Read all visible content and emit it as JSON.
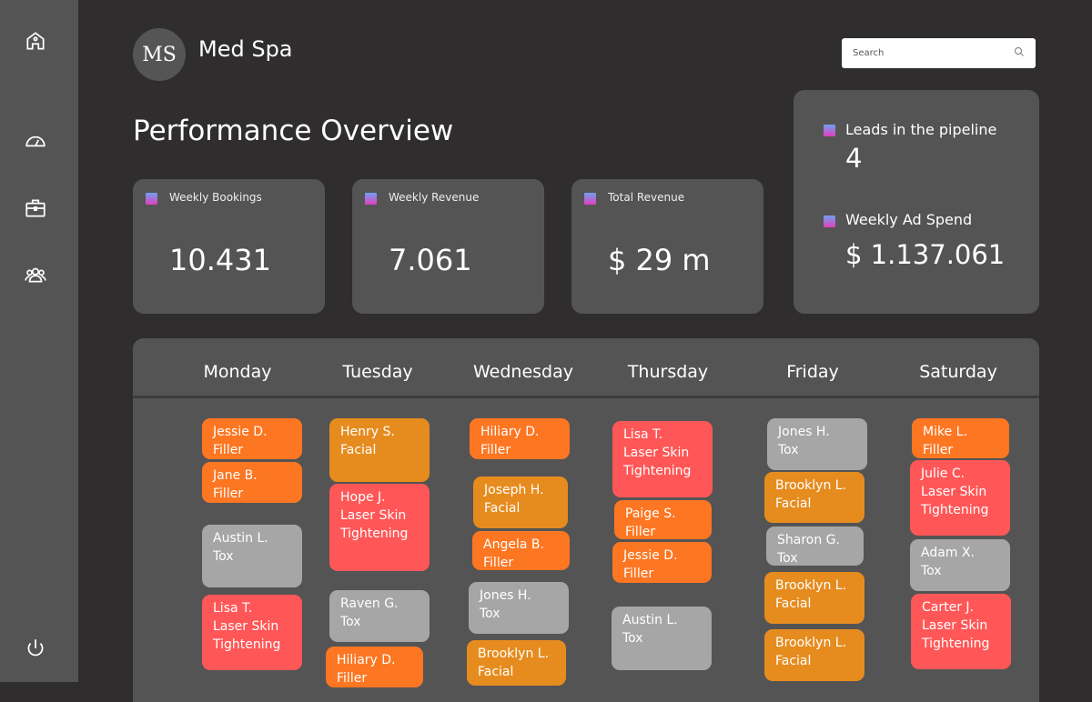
{
  "brand": {
    "logo_text": "MS",
    "name": "Med Spa"
  },
  "search": {
    "placeholder": "Search"
  },
  "page_title": "Performance Overview",
  "stats": [
    {
      "label": "Weekly Bookings",
      "value": "10.431"
    },
    {
      "label": "Weekly Revenue",
      "value": "7.061"
    },
    {
      "label": "Total Revenue",
      "value": "$ 29 m"
    }
  ],
  "side_stats": [
    {
      "label": "Leads in the pipeline",
      "value": "4"
    },
    {
      "label": "Weekly Ad Spend",
      "value": "$ 1.137.061"
    }
  ],
  "colors": {
    "Filler": "#fd7622",
    "Facial": "#e68c1f",
    "Tox": "#a6a6a6",
    "Laser Skin Tightening": "#ff5757"
  },
  "days": [
    {
      "name": "Monday",
      "appointments": [
        {
          "client": "Jessie D.",
          "service": "Filler"
        },
        {
          "client": "Jane B.",
          "service": "Filler"
        },
        {
          "client": "Austin L.",
          "service": "Tox"
        },
        {
          "client": "Lisa T.",
          "service": "Laser Skin Tightening"
        }
      ]
    },
    {
      "name": "Tuesday",
      "appointments": [
        {
          "client": "Henry S.",
          "service": "Facial"
        },
        {
          "client": "Hope J.",
          "service": "Laser Skin Tightening"
        },
        {
          "client": "Raven G.",
          "service": "Tox"
        },
        {
          "client": "Hiliary D.",
          "service": "Filler"
        }
      ]
    },
    {
      "name": "Wednesday",
      "appointments": [
        {
          "client": "Hiliary D.",
          "service": "Filler"
        },
        {
          "client": "Joseph H.",
          "service": "Facial"
        },
        {
          "client": "Angela B.",
          "service": "Filler"
        },
        {
          "client": "Jones H.",
          "service": "Tox"
        },
        {
          "client": "Brooklyn L.",
          "service": "Facial"
        }
      ]
    },
    {
      "name": "Thursday",
      "appointments": [
        {
          "client": "Lisa T.",
          "service": "Laser Skin Tightening"
        },
        {
          "client": "Paige S.",
          "service": "Filler"
        },
        {
          "client": "Jessie D.",
          "service": "Filler"
        },
        {
          "client": "Austin L.",
          "service": "Tox"
        }
      ]
    },
    {
      "name": "Friday",
      "appointments": [
        {
          "client": "Jones H.",
          "service": "Tox"
        },
        {
          "client": "Brooklyn L.",
          "service": "Facial"
        },
        {
          "client": "Sharon G.",
          "service": "Tox"
        },
        {
          "client": "Brooklyn L.",
          "service": "Facial"
        },
        {
          "client": "Brooklyn L.",
          "service": "Facial"
        }
      ]
    },
    {
      "name": "Saturday",
      "appointments": [
        {
          "client": "Mike L.",
          "service": "Filler"
        },
        {
          "client": "Julie C.",
          "service": "Laser Skin Tightening"
        },
        {
          "client": "Adam X.",
          "service": "Tox"
        },
        {
          "client": "Carter J.",
          "service": "Laser Skin Tightening"
        }
      ]
    }
  ]
}
